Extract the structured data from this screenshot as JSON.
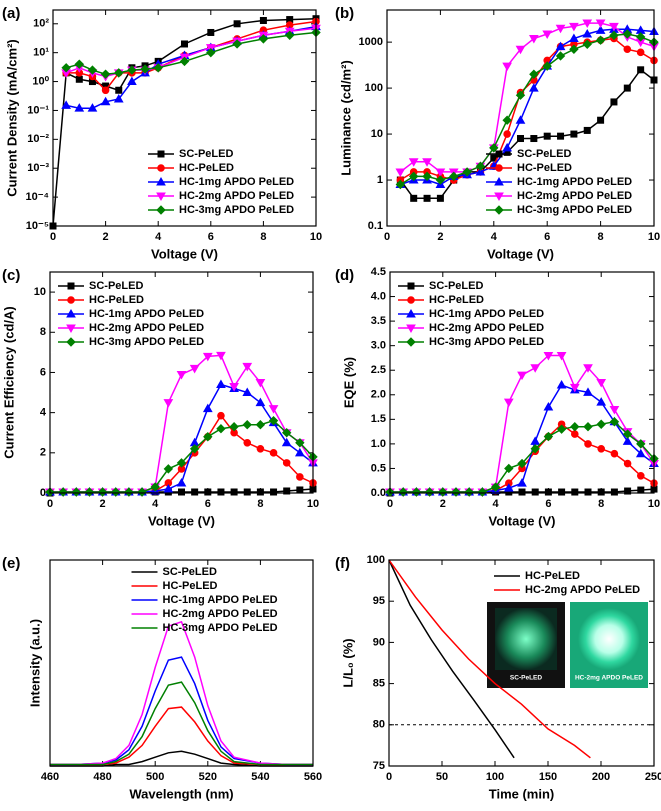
{
  "chart_data": [
    {
      "type": "line",
      "panel_label": "(a)",
      "xlabel": "Voltage (V)",
      "ylabel": "Current Density (mA/cm²)",
      "log_y": true,
      "markers": true,
      "legend": "lower right",
      "xlim": [
        0,
        10
      ],
      "xticks": [
        0,
        2,
        4,
        6,
        8,
        10
      ],
      "ylim": [
        1e-05,
        300
      ],
      "yticks": [
        {
          "value": 1e-05,
          "label": "10⁻⁵"
        },
        {
          "value": 0.0001,
          "label": "10⁻⁴"
        },
        {
          "value": 0.001,
          "label": "10⁻³"
        },
        {
          "value": 0.01,
          "label": "10⁻²"
        },
        {
          "value": 0.1,
          "label": "10⁻¹"
        },
        {
          "value": 1,
          "label": "10⁰"
        },
        {
          "value": 10,
          "label": "10¹"
        },
        {
          "value": 100,
          "label": "10²"
        }
      ],
      "x": [
        0,
        0.5,
        1,
        1.5,
        2,
        2.5,
        3,
        3.5,
        4,
        5,
        6,
        7,
        8,
        9,
        10
      ],
      "series": [
        {
          "name": "SC-PeLED",
          "color": "#000000",
          "marker": "square",
          "values": [
            1e-05,
            2,
            1.2,
            1,
            0.7,
            0.5,
            3,
            3.5,
            5,
            20,
            50,
            100,
            130,
            140,
            150
          ]
        },
        {
          "name": "HC-PeLED",
          "color": "#ff0000",
          "marker": "circle",
          "values": [
            null,
            2,
            2,
            1.5,
            0.5,
            2,
            2,
            2,
            3,
            8,
            15,
            30,
            60,
            90,
            120
          ]
        },
        {
          "name": "HC-1mg APDO PeLED",
          "color": "#0000ff",
          "marker": "up",
          "values": [
            null,
            0.15,
            0.12,
            0.12,
            0.2,
            0.25,
            1,
            2,
            4,
            8,
            15,
            25,
            40,
            55,
            80
          ]
        },
        {
          "name": "HC-2mg APDO PeLED",
          "color": "#ff00ff",
          "marker": "down",
          "values": [
            null,
            2,
            3,
            2,
            1.5,
            2,
            2.5,
            2.5,
            3,
            7,
            15,
            25,
            40,
            55,
            70
          ]
        },
        {
          "name": "HC-3mg APDO PeLED",
          "color": "#008000",
          "marker": "diamond",
          "values": [
            null,
            3,
            4,
            2.5,
            1.8,
            2,
            2.5,
            2.7,
            3,
            5,
            10,
            20,
            30,
            40,
            50
          ]
        }
      ]
    },
    {
      "type": "line",
      "panel_label": "(b)",
      "xlabel": "Voltage (V)",
      "ylabel": "Luminance (cd/m²)",
      "log_y": true,
      "markers": true,
      "legend": "lower right",
      "xlim": [
        0,
        10
      ],
      "xticks": [
        0,
        2,
        4,
        6,
        8,
        10
      ],
      "ylim": [
        0.1,
        5000
      ],
      "yticks": [
        0.1,
        1,
        10,
        100,
        1000
      ],
      "x": [
        0.5,
        1,
        1.5,
        2,
        2.5,
        3,
        3.5,
        4,
        4.5,
        5,
        5.5,
        6,
        6.5,
        7,
        7.5,
        8,
        8.5,
        9,
        9.5,
        10
      ],
      "series": [
        {
          "name": "SC-PeLED",
          "color": "#000000",
          "marker": "square",
          "values": [
            1,
            0.4,
            0.4,
            0.4,
            1,
            1.5,
            1.5,
            3,
            4,
            8,
            8,
            9,
            9,
            10,
            12,
            20,
            50,
            100,
            250,
            150
          ]
        },
        {
          "name": "HC-PeLED",
          "color": "#ff0000",
          "marker": "circle",
          "values": [
            1,
            1.5,
            1.5,
            1.2,
            1,
            1.3,
            1.5,
            2,
            10,
            80,
            150,
            400,
            800,
            900,
            1000,
            1100,
            1200,
            700,
            600,
            400
          ]
        },
        {
          "name": "HC-1mg APDO PeLED",
          "color": "#0000ff",
          "marker": "up",
          "values": [
            0.8,
            1,
            1,
            0.8,
            1.2,
            1.3,
            1.5,
            2,
            5,
            20,
            100,
            300,
            800,
            1200,
            1500,
            1800,
            1900,
            1900,
            1800,
            1700
          ]
        },
        {
          "name": "HC-2mg APDO PeLED",
          "color": "#ff00ff",
          "marker": "down",
          "values": [
            1.5,
            2.5,
            2.5,
            1.5,
            1.5,
            1.5,
            2,
            5,
            300,
            700,
            1200,
            1500,
            2000,
            2200,
            2600,
            2600,
            2200,
            1300,
            1000,
            800
          ]
        },
        {
          "name": "HC-3mg APDO PeLED",
          "color": "#008000",
          "marker": "diamond",
          "values": [
            0.8,
            1.2,
            1.2,
            1,
            1.2,
            1.5,
            2,
            5,
            20,
            70,
            200,
            300,
            500,
            700,
            900,
            1100,
            1400,
            1500,
            1300,
            1000
          ]
        }
      ]
    },
    {
      "type": "line",
      "panel_label": "(c)",
      "xlabel": "Voltage (V)",
      "ylabel": "Current Efficiency (cd/A)",
      "log_y": false,
      "markers": true,
      "legend": "upper left",
      "xlim": [
        0,
        10
      ],
      "xticks": [
        0,
        2,
        4,
        6,
        8,
        10
      ],
      "ylim": [
        0,
        11
      ],
      "yticks": [
        0,
        2,
        4,
        6,
        8,
        10
      ],
      "x": [
        0,
        0.5,
        1,
        1.5,
        2,
        2.5,
        3,
        3.5,
        4,
        4.5,
        5,
        5.5,
        6,
        6.5,
        7,
        7.5,
        8,
        8.5,
        9,
        9.5,
        10
      ],
      "series": [
        {
          "name": "SC-PeLED",
          "color": "#000000",
          "marker": "square",
          "values": [
            0,
            0.05,
            0.05,
            0.05,
            0.05,
            0.05,
            0.05,
            0.05,
            0.05,
            0.05,
            0.05,
            0.05,
            0.05,
            0.05,
            0.05,
            0.05,
            0.05,
            0.05,
            0.1,
            0.15,
            0.2
          ]
        },
        {
          "name": "HC-PeLED",
          "color": "#ff0000",
          "marker": "circle",
          "values": [
            0.05,
            0.05,
            0.05,
            0.05,
            0.05,
            0.05,
            0.05,
            0.05,
            0.1,
            0.5,
            1.2,
            2,
            2.8,
            3.85,
            3,
            2.5,
            2.2,
            2,
            1.5,
            0.8,
            0.5
          ]
        },
        {
          "name": "HC-1mg APDO PeLED",
          "color": "#0000ff",
          "marker": "up",
          "values": [
            0.05,
            0.05,
            0.05,
            0.05,
            0.05,
            0.05,
            0.05,
            0.05,
            0.1,
            0.2,
            0.5,
            2.5,
            4.2,
            5.4,
            5.2,
            5,
            4.5,
            3.5,
            2.5,
            2,
            1.5
          ]
        },
        {
          "name": "HC-2mg APDO PeLED",
          "color": "#ff00ff",
          "marker": "down",
          "values": [
            0.05,
            0.05,
            0.05,
            0.05,
            0.05,
            0.05,
            0.05,
            0.05,
            0.3,
            4.5,
            5.9,
            6.2,
            6.8,
            6.85,
            5.3,
            6.3,
            5.5,
            4.2,
            3,
            2.5,
            1.5
          ]
        },
        {
          "name": "HC-3mg APDO PeLED",
          "color": "#008000",
          "marker": "diamond",
          "values": [
            0.05,
            0.05,
            0.05,
            0.05,
            0.05,
            0.05,
            0.05,
            0.05,
            0.3,
            1.2,
            1.5,
            2.2,
            2.8,
            3.2,
            3.3,
            3.4,
            3.4,
            3.6,
            3,
            2.5,
            1.8
          ]
        }
      ]
    },
    {
      "type": "line",
      "panel_label": "(d)",
      "xlabel": "Voltage (V)",
      "ylabel": "EQE (%)",
      "log_y": false,
      "markers": true,
      "legend": "upper left",
      "xlim": [
        0,
        10
      ],
      "xticks": [
        0,
        2,
        4,
        6,
        8,
        10
      ],
      "ylim": [
        0,
        4.5
      ],
      "yticks": [
        {
          "value": 0,
          "label": "0.0"
        },
        0.5,
        {
          "value": 1,
          "label": "1.0"
        },
        1.5,
        {
          "value": 2,
          "label": "2.0"
        },
        2.5,
        {
          "value": 3,
          "label": "3.0"
        },
        3.5,
        {
          "value": 4,
          "label": "4.0"
        },
        4.5
      ],
      "x": [
        0,
        0.5,
        1,
        1.5,
        2,
        2.5,
        3,
        3.5,
        4,
        4.5,
        5,
        5.5,
        6,
        6.5,
        7,
        7.5,
        8,
        8.5,
        9,
        9.5,
        10
      ],
      "series": [
        {
          "name": "SC-PeLED",
          "color": "#000000",
          "marker": "square",
          "values": [
            0,
            0.02,
            0.02,
            0.02,
            0.02,
            0.02,
            0.02,
            0.02,
            0.02,
            0.02,
            0.02,
            0.02,
            0.02,
            0.02,
            0.02,
            0.02,
            0.02,
            0.02,
            0.04,
            0.06,
            0.08
          ]
        },
        {
          "name": "HC-PeLED",
          "color": "#ff0000",
          "marker": "circle",
          "values": [
            0.02,
            0.02,
            0.02,
            0.02,
            0.02,
            0.02,
            0.02,
            0.02,
            0.05,
            0.2,
            0.5,
            0.85,
            1.15,
            1.4,
            1.2,
            1,
            0.9,
            0.8,
            0.6,
            0.35,
            0.2
          ]
        },
        {
          "name": "HC-1mg APDO PeLED",
          "color": "#0000ff",
          "marker": "up",
          "values": [
            0.02,
            0.02,
            0.02,
            0.02,
            0.02,
            0.02,
            0.02,
            0.02,
            0.05,
            0.1,
            0.2,
            1.05,
            1.75,
            2.2,
            2.1,
            2.05,
            1.85,
            1.45,
            1.05,
            0.8,
            0.6
          ]
        },
        {
          "name": "HC-2mg APDO PeLED",
          "color": "#ff00ff",
          "marker": "down",
          "values": [
            0.02,
            0.02,
            0.02,
            0.02,
            0.02,
            0.02,
            0.02,
            0.02,
            0.12,
            1.85,
            2.4,
            2.55,
            2.8,
            2.8,
            2.15,
            2.55,
            2.25,
            1.7,
            1.25,
            1,
            0.6
          ]
        },
        {
          "name": "HC-3mg APDO PeLED",
          "color": "#008000",
          "marker": "diamond",
          "values": [
            0.02,
            0.02,
            0.02,
            0.02,
            0.02,
            0.02,
            0.02,
            0.02,
            0.12,
            0.5,
            0.6,
            0.9,
            1.15,
            1.3,
            1.35,
            1.35,
            1.4,
            1.45,
            1.2,
            1,
            0.7
          ]
        }
      ]
    },
    {
      "type": "line",
      "panel_label": "(e)",
      "xlabel": "Wavelength (nm)",
      "ylabel": "Intensity (a.u.)",
      "log_y": false,
      "markers": false,
      "legend": "upper center",
      "xlim": [
        460,
        560
      ],
      "xticks": [
        460,
        480,
        500,
        520,
        540,
        560
      ],
      "ylim": [
        0,
        1.4
      ],
      "x": [
        460,
        470,
        480,
        485,
        490,
        495,
        500,
        505,
        510,
        515,
        520,
        525,
        530,
        540,
        550,
        560
      ],
      "series": [
        {
          "name": "SC-PeLED",
          "color": "#000000",
          "values": [
            0,
            0,
            0,
            0.01,
            0.01,
            0.03,
            0.06,
            0.09,
            0.1,
            0.08,
            0.05,
            0.02,
            0.01,
            0,
            0,
            0
          ]
        },
        {
          "name": "HC-PeLED",
          "color": "#ff0000",
          "values": [
            0.01,
            0.01,
            0.01,
            0.02,
            0.06,
            0.14,
            0.27,
            0.39,
            0.4,
            0.3,
            0.17,
            0.07,
            0.02,
            0.01,
            0.01,
            0.01
          ]
        },
        {
          "name": "HC-1mg APDO PeLED",
          "color": "#0000ff",
          "values": [
            0.01,
            0.01,
            0.02,
            0.04,
            0.11,
            0.27,
            0.51,
            0.72,
            0.74,
            0.56,
            0.31,
            0.13,
            0.05,
            0.02,
            0.01,
            0.01
          ]
        },
        {
          "name": "HC-2mg APDO PeLED",
          "color": "#ff00ff",
          "values": [
            0.01,
            0.01,
            0.02,
            0.05,
            0.14,
            0.35,
            0.67,
            0.95,
            0.98,
            0.74,
            0.41,
            0.17,
            0.06,
            0.02,
            0.01,
            0.01
          ]
        },
        {
          "name": "HC-3mg APDO PeLED",
          "color": "#008000",
          "values": [
            0.01,
            0.01,
            0.01,
            0.03,
            0.08,
            0.2,
            0.39,
            0.55,
            0.57,
            0.43,
            0.24,
            0.1,
            0.03,
            0.01,
            0.01,
            0.01
          ]
        }
      ]
    },
    {
      "type": "line",
      "panel_label": "(f)",
      "xlabel": "Time (min)",
      "ylabel": "L/L₀ (%)",
      "log_y": false,
      "markers": false,
      "legend": "upper right",
      "xlim": [
        0,
        250
      ],
      "xticks": [
        0,
        50,
        100,
        150,
        200,
        250
      ],
      "ylim": [
        75,
        100
      ],
      "yticks": [
        75,
        80,
        85,
        90,
        95,
        100
      ],
      "ref_line": 80,
      "inset_labels": [
        "SC-PeLED",
        "HC-2mg APDO PeLED"
      ],
      "series": [
        {
          "name": "HC-PeLED",
          "color": "#000000",
          "x": [
            0,
            20,
            40,
            60,
            80,
            100,
            118
          ],
          "values": [
            100,
            94.5,
            90.3,
            86.5,
            83,
            79.4,
            76
          ]
        },
        {
          "name": "HC-2mg APDO PeLED",
          "color": "#ff0000",
          "x": [
            0,
            25,
            50,
            75,
            100,
            125,
            150,
            175,
            190
          ],
          "values": [
            100,
            95.5,
            91.5,
            88,
            85,
            82.5,
            79.5,
            77.5,
            76
          ]
        }
      ]
    }
  ]
}
